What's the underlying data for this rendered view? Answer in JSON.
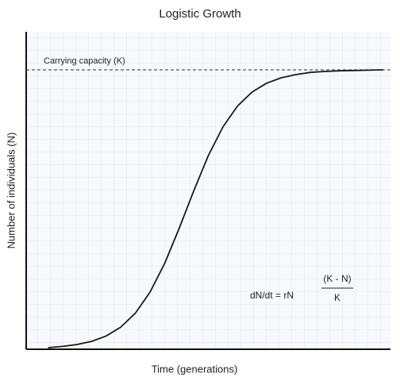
{
  "chart_data": {
    "type": "line",
    "title": "Logistic Growth",
    "x_label": "Time (generations)",
    "y_label": "Number of individuals (N)",
    "x": [
      6,
      10,
      14,
      18,
      22,
      26,
      30,
      34,
      38,
      42,
      46,
      50,
      54,
      58,
      62,
      66,
      70,
      74,
      78,
      82,
      86,
      90,
      94,
      98
    ],
    "series": [
      {
        "color": "#1a1a1a",
        "values": [
          0.5,
          0.9,
          1.5,
          2.5,
          4.2,
          7.0,
          11.4,
          18.0,
          27.0,
          38.1,
          49.9,
          61.0,
          70.0,
          76.6,
          81.0,
          83.8,
          85.5,
          86.5,
          87.2,
          87.5,
          87.7,
          87.8,
          87.9,
          88.0
        ]
      }
    ],
    "xlim": [
      0,
      100
    ],
    "ylim": [
      0,
      100
    ],
    "reference_line": {
      "label": "Carrying capacity (K)",
      "value": 88,
      "color": "#555555"
    },
    "equation": {
      "left": "dN/dt = rN",
      "numerator": "(K - N)",
      "denominator": "K"
    }
  }
}
